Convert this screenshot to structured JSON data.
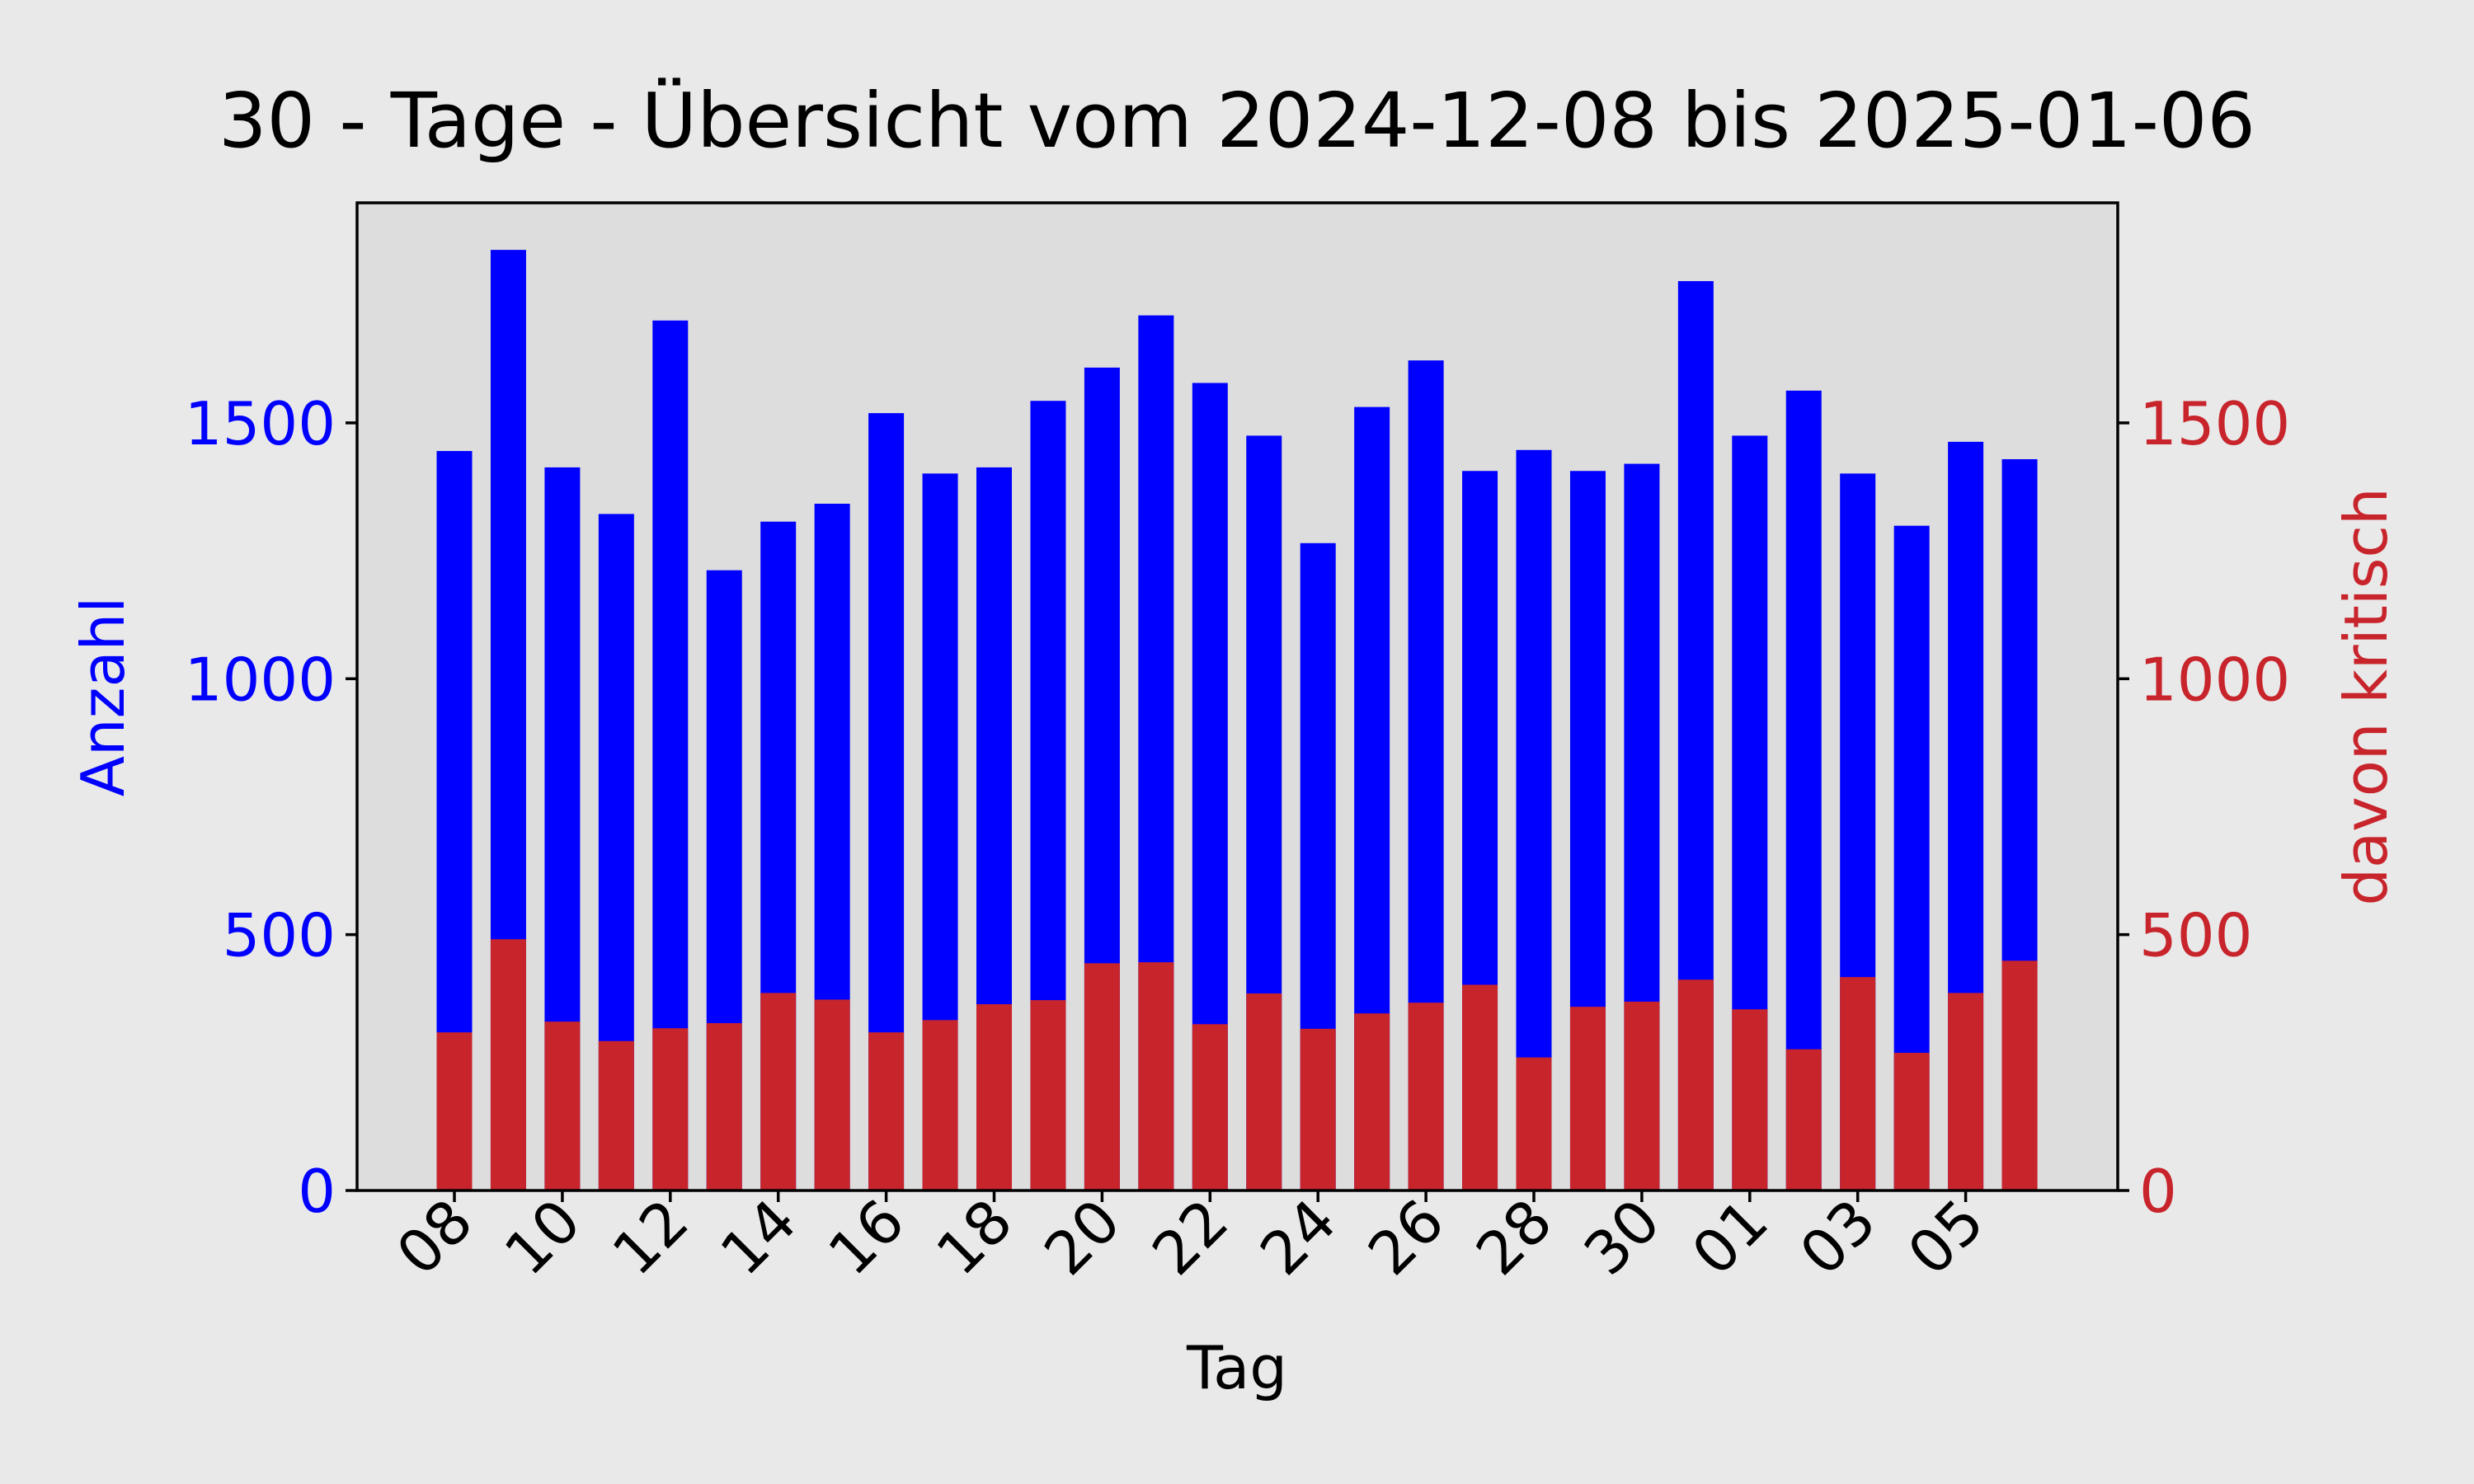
{
  "chart_data": {
    "type": "bar",
    "title": "30 - Tage - Übersicht vom 2024-12-08 bis 2025-01-06",
    "xlabel": "Tag",
    "ylabel_left": "Anzahl",
    "ylabel_right": "davon kritisch",
    "categories": [
      "2024-12-08",
      "2024-12-09",
      "2024-12-10",
      "2024-12-11",
      "2024-12-12",
      "2024-12-13",
      "2024-12-14",
      "2024-12-15",
      "2024-12-16",
      "2024-12-17",
      "2024-12-18",
      "2024-12-19",
      "2024-12-20",
      "2024-12-21",
      "2024-12-22",
      "2024-12-23",
      "2024-12-24",
      "2024-12-25",
      "2024-12-26",
      "2024-12-27",
      "2024-12-28",
      "2024-12-29",
      "2024-12-30",
      "2024-12-31",
      "2025-01-01",
      "2025-01-02",
      "2025-01-03",
      "2025-01-04",
      "2025-01-05",
      "2025-01-06"
    ],
    "x_tick_labels": [
      "08",
      "10",
      "12",
      "14",
      "16",
      "18",
      "20",
      "22",
      "24",
      "26",
      "28",
      "30",
      "01",
      "03",
      "05"
    ],
    "y_ticks": [
      0,
      500,
      1000,
      1500
    ],
    "ylim": [
      0,
      1930
    ],
    "grid": false,
    "series": [
      {
        "name": "Anzahl",
        "axis": "left",
        "color": "#0000ff",
        "values": [
          1445,
          1838,
          1413,
          1322,
          1700,
          1212,
          1307,
          1342,
          1519,
          1401,
          1413,
          1543,
          1608,
          1710,
          1578,
          1475,
          1265,
          1531,
          1622,
          1406,
          1447,
          1406,
          1420,
          1777,
          1475,
          1563,
          1401,
          1299,
          1463,
          1429
        ]
      },
      {
        "name": "davon kritisch",
        "axis": "right",
        "color": "#c8242b",
        "values": [
          309,
          491,
          330,
          292,
          317,
          327,
          386,
          373,
          309,
          333,
          364,
          372,
          444,
          446,
          325,
          385,
          316,
          346,
          367,
          402,
          260,
          359,
          369,
          412,
          354,
          276,
          417,
          269,
          386,
          449
        ]
      }
    ],
    "colors": {
      "left_axis": "#0000ff",
      "right_axis": "#c8242b",
      "plot_background": "#dddddd",
      "figure_background": "#e9e9e9"
    }
  }
}
